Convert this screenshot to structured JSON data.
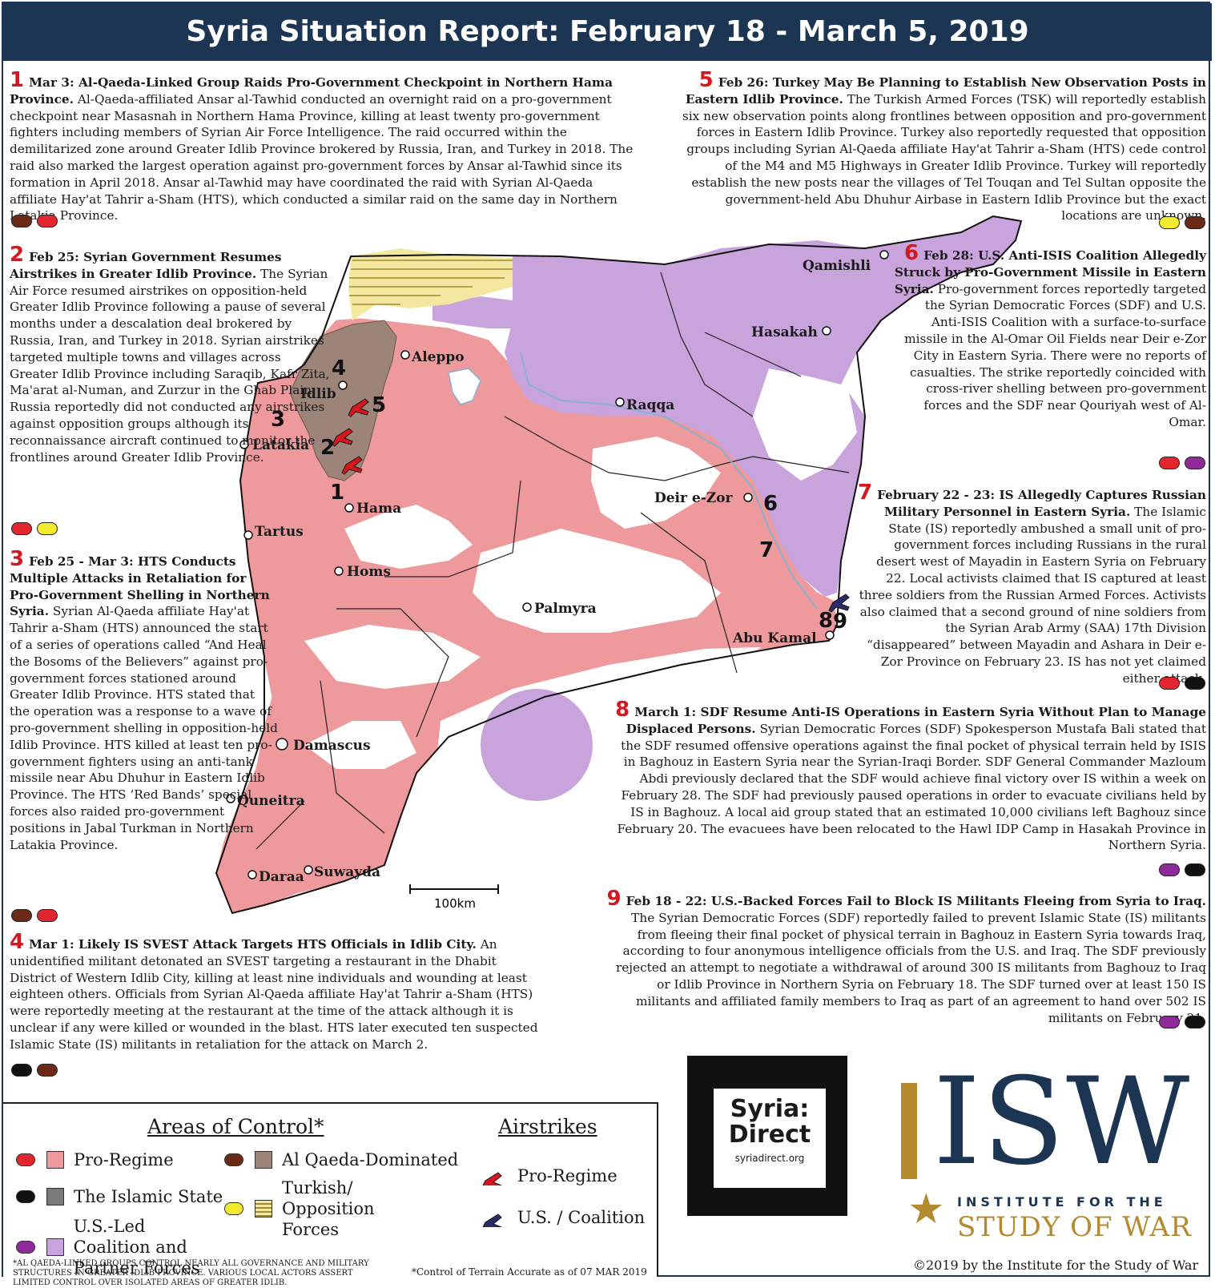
{
  "title": "Syria Situation Report: February 18 - March 5, 2019",
  "colors": {
    "pro_regime": "#ee9a9c",
    "islamic_state": "#7a7a7a",
    "coalition": "#c9a3dc",
    "alqaeda": "#9c8478",
    "turkish": "#f4e7a0",
    "red_pill": "#e3262e",
    "brown_pill": "#6b2a16",
    "yellow_pill": "#f2ea2e",
    "purple_pill": "#8e2a99",
    "black_pill": "#111111"
  },
  "reports": [
    {
      "num": "1",
      "headline": "Mar 3: Al-Qaeda-Linked Group Raids Pro-Government Checkpoint in Northern Hama Province.",
      "body": "Al-Qaeda-affiliated Ansar al-Tawhid conducted an overnight raid on a pro-government checkpoint near Masasnah in Northern Hama Province, killing at least twenty pro-government fighters including members of Syrian Air Force Intelligence. The raid occurred within the demilitarized zone around Greater Idlib Province brokered by Russia, Iran, and Turkey in 2018. The raid also marked the largest operation against pro-government forces by Ansar al-Tawhid since its formation in April 2018. Ansar al-Tawhid may have coordinated the raid with Syrian Al-Qaeda affiliate Hay'at Tahrir a-Sham (HTS), which conducted a similar raid on the same day in Northern Latakia Province."
    },
    {
      "num": "2",
      "headline": "Feb 25: Syrian Government Resumes Airstrikes in Greater Idlib Province.",
      "body": "The Syrian Air Force resumed airstrikes on opposition-held Greater Idlib Province following a pause of several months under a descalation deal brokered by Russia, Iran, and Turkey in 2018. Syrian airstrikes targeted multiple towns and villages across Greater Idlib Province including Saraqib, Kafr Zita, Ma'arat al-Numan, and Zurzur in the Ghab Plain. Russia reportedly did not conducted any airstrikes against opposition groups although its reconnaissance aircraft continued to monitor the frontlines around Greater Idlib Province."
    },
    {
      "num": "3",
      "headline": "Feb 25 - Mar 3: HTS Conducts Multiple Attacks in Retaliation for Pro-Government Shelling in Northern Syria.",
      "body": "Syrian Al-Qaeda affiliate Hay'at Tahrir a-Sham (HTS) announced the start of a series of operations called “And Heal the Bosoms of the Believers” against pro-government forces stationed around Greater Idlib Province. HTS stated that the operation was a response to a wave of pro-government shelling in opposition-held Idlib Province. HTS killed at least ten pro-government fighters using an anti-tank missile near Abu Dhuhur in Eastern Idlib Province. The HTS ‘Red Bands’ special forces also raided pro-government positions in Jabal Turkman in Northern Latakia Province."
    },
    {
      "num": "4",
      "headline": "Mar 1: Likely IS SVEST Attack Targets HTS Officials in Idlib City.",
      "body": "An unidentified militant detonated an SVEST targeting a restaurant in the Dhabit District of Western Idlib City, killing at least nine individuals and wounding at least eighteen others. Officials from Syrian Al-Qaeda affiliate Hay'at Tahrir a-Sham (HTS) were reportedly meeting at the restaurant at the time of the attack although it is unclear if any were killed or wounded in the blast. HTS later executed ten suspected Islamic State (IS) militants in retaliation for the attack on March 2."
    },
    {
      "num": "5",
      "headline": "Feb 26: Turkey May Be Planning to Establish New Observation Posts in Eastern Idlib Province.",
      "body": "The Turkish Armed Forces (TSK) will reportedly establish six new observation points along frontlines between opposition and pro-government forces in Eastern Idlib Province. Turkey also reportedly requested that opposition groups including Syrian Al-Qaeda affiliate Hay'at Tahrir a-Sham (HTS) cede control of the M4 and M5 Highways in Greater Idlib Province. Turkey will reportedly establish the new posts near the villages of Tel Touqan and Tel Sultan opposite the government-held Abu Dhuhur Airbase in Eastern Idlib Province but the exact locations are unknown."
    },
    {
      "num": "6",
      "headline": "Feb 28: U.S. Anti-ISIS Coalition Allegedly Struck by Pro-Government Missile in Eastern Syria.",
      "body": "Pro-government forces reportedly targeted the Syrian Democratic Forces (SDF) and U.S. Anti-ISIS Coalition with a surface-to-surface missile in the Al-Omar Oil Fields near Deir e-Zor City in Eastern Syria. There were no reports of casualties. The strike reportedly coincided with cross-river shelling between pro-government forces and the SDF near Qouriyah west of Al-Omar."
    },
    {
      "num": "7",
      "headline": "February 22 - 23: IS Allegedly Captures Russian Military Personnel in Eastern Syria.",
      "body": "The Islamic State (IS) reportedly ambushed a small unit of pro-government forces including Russians in the rural desert west of Mayadin in Eastern Syria on February 22. Local activists claimed that IS captured at least three soldiers from the Russian Armed Forces. Activists also claimed that a second ground of nine soldiers from the Syrian Arab Army (SAA) 17th Division “disappeared” between Mayadin and Ashara in Deir e-Zor Province on February 23. IS has not yet claimed either attack."
    },
    {
      "num": "8",
      "headline": "March 1: SDF Resume Anti-IS Operations in Eastern Syria Without Plan to Manage Displaced Persons.",
      "body": "Syrian Democratic Forces (SDF) Spokesperson Mustafa Bali stated that the SDF resumed offensive operations against the final pocket of physical terrain held by ISIS in Baghouz in Eastern Syria near the Syrian-Iraqi Border. SDF General Commander Mazloum Abdi previously declared that the SDF would achieve final victory over IS within a week on February 28. The SDF had previously paused operations in order to evacuate civilians held by IS in Baghouz. A local aid group stated that an estimated 10,000 civilians left Baghouz since February 20. The evacuees have been relocated to the Hawl IDP Camp in Hasakah Province in Northern Syria."
    },
    {
      "num": "9",
      "headline": "Feb 18 - 22: U.S.-Backed Forces Fail to Block IS Militants Fleeing from Syria to Iraq.",
      "body": "The Syrian Democratic Forces (SDF) reportedly failed to prevent Islamic State (IS) militants from fleeing their final pocket of physical terrain in Baghouz in Eastern Syria towards Iraq, according to four anonymous intelligence officials from the U.S. and Iraq. The SDF previously rejected an attempt to negotiate a withdrawal of around 300 IS militants from Baghouz to Iraq or Idlib Province in Northern Syria on February 18. The SDF turned over at least 150 IS militants and affiliated family members to Iraq as part of an agreement to hand over 502 IS militants on February 21."
    }
  ],
  "map": {
    "cities": [
      "Qamishli",
      "Hasakah",
      "Aleppo",
      "Idlib",
      "Raqqa",
      "Latakia",
      "Deir e-Zor",
      "Hama",
      "Tartus",
      "Homs",
      "Palmyra",
      "Abu Kamal",
      "Damascus",
      "Quneitra",
      "Suwayda",
      "Daraa"
    ],
    "event_markers": [
      "1",
      "2",
      "3",
      "4",
      "5",
      "6",
      "7",
      "8",
      "9"
    ],
    "scale_label": "100km"
  },
  "legend": {
    "areas_title": "Areas of Control*",
    "airstrikes_title": "Airstrikes",
    "pro_regime": "Pro-Regime",
    "islamic_state": "The Islamic State",
    "coalition": "U.S.-Led Coalition and Partner Forces",
    "alqaeda": "Al Qaeda-Dominated",
    "turkish": "Turkish/ Opposition Forces",
    "airstrike_pro": "Pro-Regime",
    "airstrike_us": "U.S. / Coalition"
  },
  "footnotes": {
    "alqaeda_note": "*AL QAEDA-LINKED GROUPS CONTROL NEARLY ALL GOVERNANCE AND MILITARY STRUCTURES IN GREATER IDLIB PROVINCE. VARIOUS LOCAL ACTORS ASSERT LIMITED CONTROL OVER ISOLATED AREAS OF GREATER IDLIB.",
    "terrain_note": "*Control of Terrain Accurate as of 07 MAR 2019"
  },
  "logos": {
    "syria_direct_title": "Syria: Direct",
    "syria_direct_url": "syriadirect.org",
    "isw": "ISW",
    "isw_line1": "INSTITUTE FOR THE",
    "isw_line2": "STUDY OF WAR"
  },
  "copyright": "©2019 by the Institute for the Study of War"
}
